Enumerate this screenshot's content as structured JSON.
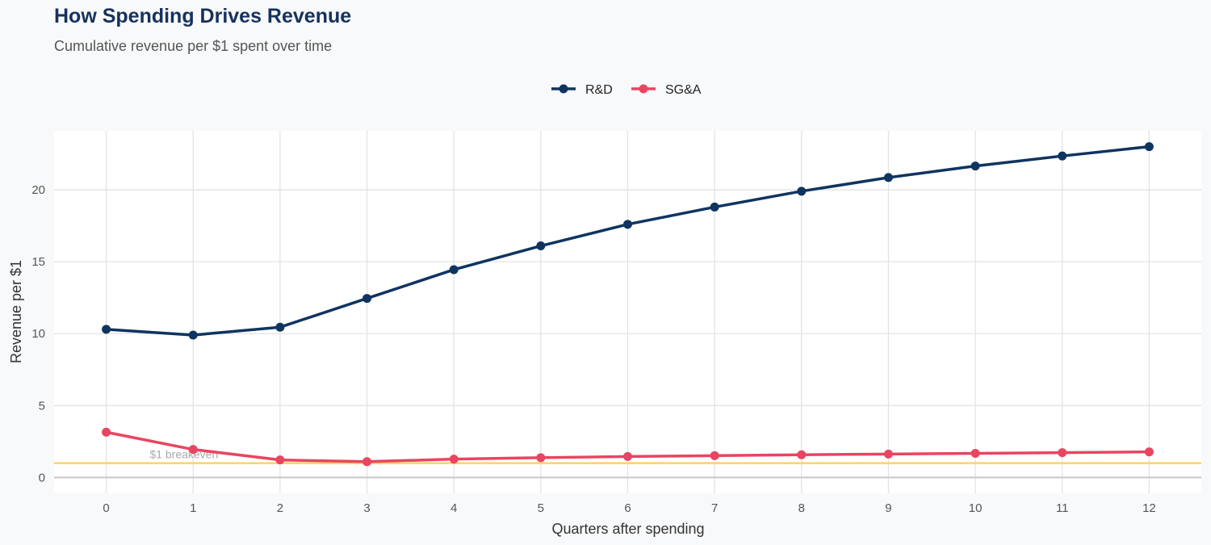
{
  "chart_data": {
    "type": "line",
    "title": "How Spending Drives Revenue",
    "subtitle": "Cumulative revenue per $1 spent over time",
    "xlabel": "Quarters after spending",
    "ylabel": "Revenue per $1",
    "x": [
      0,
      1,
      2,
      3,
      4,
      5,
      6,
      7,
      8,
      9,
      10,
      11,
      12
    ],
    "xticks": [
      "0",
      "1",
      "2",
      "3",
      "4",
      "5",
      "6",
      "7",
      "8",
      "9",
      "10",
      "11",
      "12"
    ],
    "yticks": [
      "0",
      "5",
      "10",
      "15",
      "20"
    ],
    "ylim": [
      -1.1,
      24.1
    ],
    "xlim": [
      -0.6,
      12.6
    ],
    "grid": true,
    "legend_position": "top",
    "series": [
      {
        "name": "R&D",
        "color": "#0f3460",
        "values": [
          10.3,
          9.9,
          10.45,
          12.45,
          14.45,
          16.1,
          17.6,
          18.8,
          19.9,
          20.85,
          21.65,
          22.35,
          23.0
        ]
      },
      {
        "name": "SG&A",
        "color": "#e94560",
        "values": [
          3.15,
          1.95,
          1.22,
          1.1,
          1.28,
          1.38,
          1.46,
          1.52,
          1.58,
          1.63,
          1.68,
          1.73,
          1.78
        ]
      }
    ],
    "reference_line": {
      "y": 1,
      "label": "$1 breakeven",
      "color": "#fdd365"
    }
  }
}
